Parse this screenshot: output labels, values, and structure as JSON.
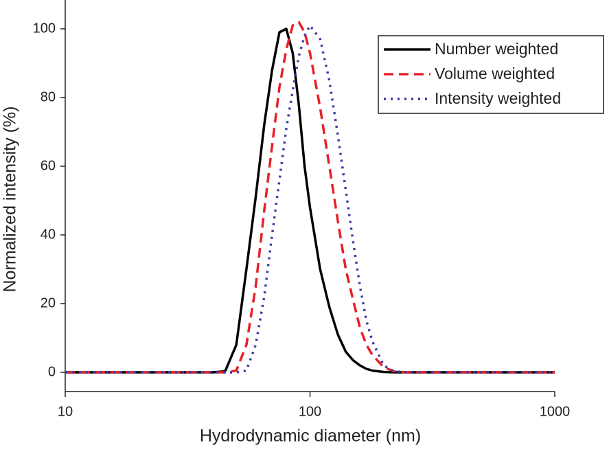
{
  "chart_data": {
    "type": "line",
    "xlabel": "Hydrodynamic diameter (nm)",
    "ylabel": "Normalized intensity (%)",
    "xscale": "log",
    "xlim": [
      10,
      1000
    ],
    "xticks": [
      10,
      100,
      1000
    ],
    "ylim": [
      -5.6,
      108.4
    ],
    "yticks": [
      0,
      20,
      40,
      60,
      80,
      100
    ],
    "legend": "upper right",
    "x": [
      10,
      20,
      30,
      40,
      45,
      50,
      55,
      60,
      65,
      70,
      75,
      80,
      85,
      90,
      95,
      100,
      110,
      120,
      130,
      140,
      150,
      160,
      170,
      180,
      200,
      220,
      250,
      300,
      500,
      1000
    ],
    "series": [
      {
        "name": "Number weighted",
        "color": "#000000",
        "dash": "solid",
        "values": [
          0,
          0,
          0,
          0,
          0.3,
          8,
          30,
          51,
          72,
          88,
          99,
          100,
          93,
          78,
          60,
          48,
          30,
          19,
          11,
          6,
          3.5,
          2,
          1,
          0.5,
          0.1,
          0,
          0,
          0,
          0,
          0
        ]
      },
      {
        "name": "Volume weighted",
        "color": "#e8202a",
        "dash": "dashed",
        "values": [
          0,
          0,
          0,
          0,
          0,
          0.5,
          8,
          25,
          47,
          66,
          83,
          94,
          101,
          102,
          99,
          93,
          77,
          60,
          44,
          30,
          21,
          13,
          8,
          5,
          1.5,
          0.3,
          0,
          0,
          0,
          0
        ]
      },
      {
        "name": "Intensity weighted",
        "color": "#3a3aa8",
        "dash": "dotted",
        "values": [
          0,
          0,
          0,
          0,
          0,
          0,
          0.5,
          8,
          22,
          40,
          56,
          71,
          82,
          92,
          98,
          101,
          97,
          85,
          69,
          53,
          38,
          25,
          15,
          9,
          2,
          0.3,
          0,
          0,
          0,
          0
        ]
      }
    ]
  }
}
